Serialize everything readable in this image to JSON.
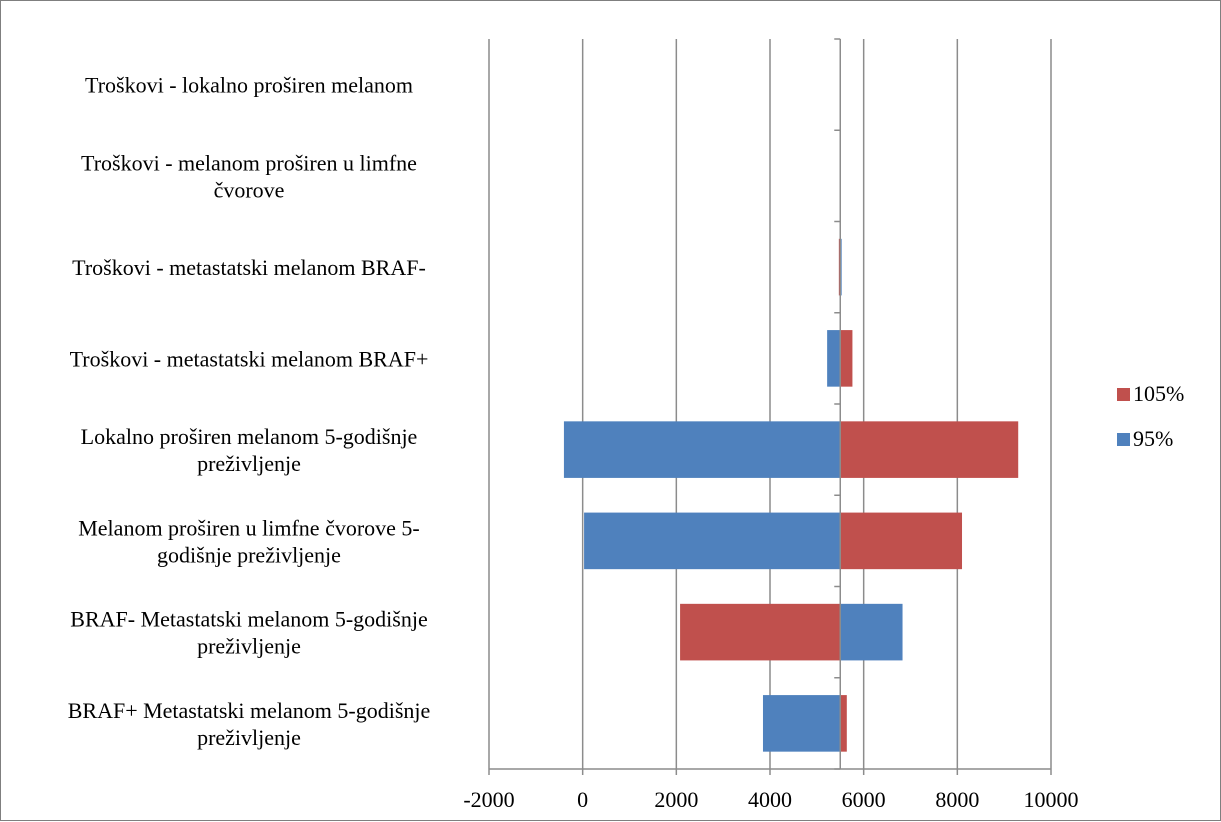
{
  "chart_data": {
    "type": "bar",
    "orientation": "horizontal",
    "style": "tornado",
    "baseline": 5500,
    "categories": [
      [
        "Troškovi - lokalno proširen melanom"
      ],
      [
        "Troškovi - melanom proširen u limfne",
        "čvorove"
      ],
      [
        "Troškovi - metastatski melanom BRAF-"
      ],
      [
        "Troškovi - metastatski melanom BRAF+"
      ],
      [
        "Lokalno proširen melanom 5-godišnje",
        "preživljenje"
      ],
      [
        "Melanom proširen u limfne čvorove 5-",
        "godišnje preživljenje"
      ],
      [
        "BRAF- Metastatski melanom 5-godišnje",
        "preživljenje"
      ],
      [
        "BRAF+ Metastatski melanom 5-godišnje",
        "preživljenje"
      ]
    ],
    "series": [
      {
        "name": "95%",
        "color": "#4F81BD",
        "values": [
          5500,
          5500,
          5530,
          5220,
          -400,
          30,
          6830,
          3850
        ]
      },
      {
        "name": "105%",
        "color": "#C0504D",
        "values": [
          5500,
          5500,
          5470,
          5760,
          9300,
          8100,
          2080,
          5640
        ]
      }
    ],
    "legend_order": [
      "105%",
      "95%"
    ],
    "xlim": [
      -2000,
      10000
    ],
    "xticks": [
      -2000,
      0,
      2000,
      4000,
      6000,
      8000,
      10000
    ],
    "xtick_labels": [
      "-2000",
      "0",
      "2000",
      "4000",
      "6000",
      "8000",
      "10000"
    ],
    "grid": "vertical",
    "legend_position": "right"
  }
}
